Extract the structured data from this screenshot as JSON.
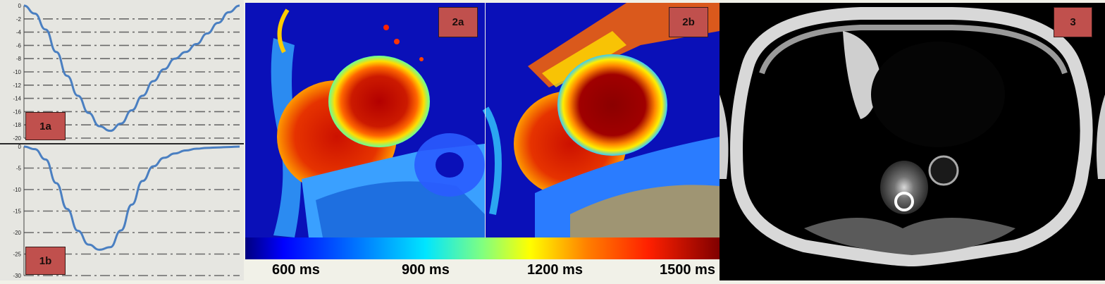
{
  "panels": {
    "p1a": {
      "label": "1a"
    },
    "p1b": {
      "label": "1b"
    },
    "p2a": {
      "label": "2a"
    },
    "p2b": {
      "label": "2b"
    },
    "p3": {
      "label": "3"
    }
  },
  "chart_data": [
    {
      "type": "line",
      "title": "",
      "xlabel": "",
      "ylabel": "",
      "ylim": [
        -20,
        0
      ],
      "yticks": [
        "0",
        "-2",
        "-4",
        "-6",
        "-8",
        "-10",
        "-12",
        "-14",
        "-16",
        "-18",
        "-20"
      ],
      "tick_values": [
        0,
        -2,
        -4,
        -6,
        -8,
        -10,
        -12,
        -14,
        -16,
        -18,
        -20
      ],
      "x": [
        0,
        0.05,
        0.1,
        0.15,
        0.2,
        0.25,
        0.3,
        0.35,
        0.4,
        0.45,
        0.5,
        0.55,
        0.6,
        0.65,
        0.7,
        0.75,
        0.8,
        0.85,
        0.9,
        0.95,
        1
      ],
      "series": [
        {
          "values": [
            0,
            -1.2,
            -3.6,
            -7,
            -10.6,
            -13.6,
            -16.2,
            -18.2,
            -18.9,
            -17.8,
            -15.8,
            -13.6,
            -11.4,
            -9.6,
            -8,
            -7,
            -5.8,
            -4.2,
            -2.6,
            -1.0,
            0
          ]
        }
      ]
    },
    {
      "type": "line",
      "title": "",
      "xlabel": "",
      "ylabel": "",
      "ylim": [
        -30,
        0
      ],
      "yticks": [
        "0",
        "-5",
        "-10",
        "-15",
        "-20",
        "-25",
        "-30"
      ],
      "tick_values": [
        0,
        -5,
        -10,
        -15,
        -20,
        -25,
        -30
      ],
      "x": [
        0,
        0.05,
        0.1,
        0.15,
        0.2,
        0.25,
        0.3,
        0.35,
        0.4,
        0.45,
        0.5,
        0.55,
        0.6,
        0.65,
        0.7,
        0.75,
        0.8,
        0.85,
        0.9,
        0.95,
        1
      ],
      "series": [
        {
          "values": [
            0,
            -0.6,
            -3,
            -8.5,
            -14.5,
            -19.6,
            -22.8,
            -24.0,
            -23.4,
            -19.5,
            -13.5,
            -8,
            -4.6,
            -2.6,
            -1.6,
            -0.9,
            -0.5,
            -0.3,
            -0.2,
            -0.1,
            0
          ]
        }
      ]
    }
  ],
  "colorbar": {
    "labels": [
      "600 ms",
      "900 ms",
      "1200 ms",
      "1500 ms"
    ],
    "colors": [
      "#00007f",
      "#0000ff",
      "#0066ff",
      "#00ccff",
      "#33ffcc",
      "#99ff66",
      "#ffff00",
      "#ff9900",
      "#ff3300",
      "#b30000",
      "#800000"
    ]
  }
}
